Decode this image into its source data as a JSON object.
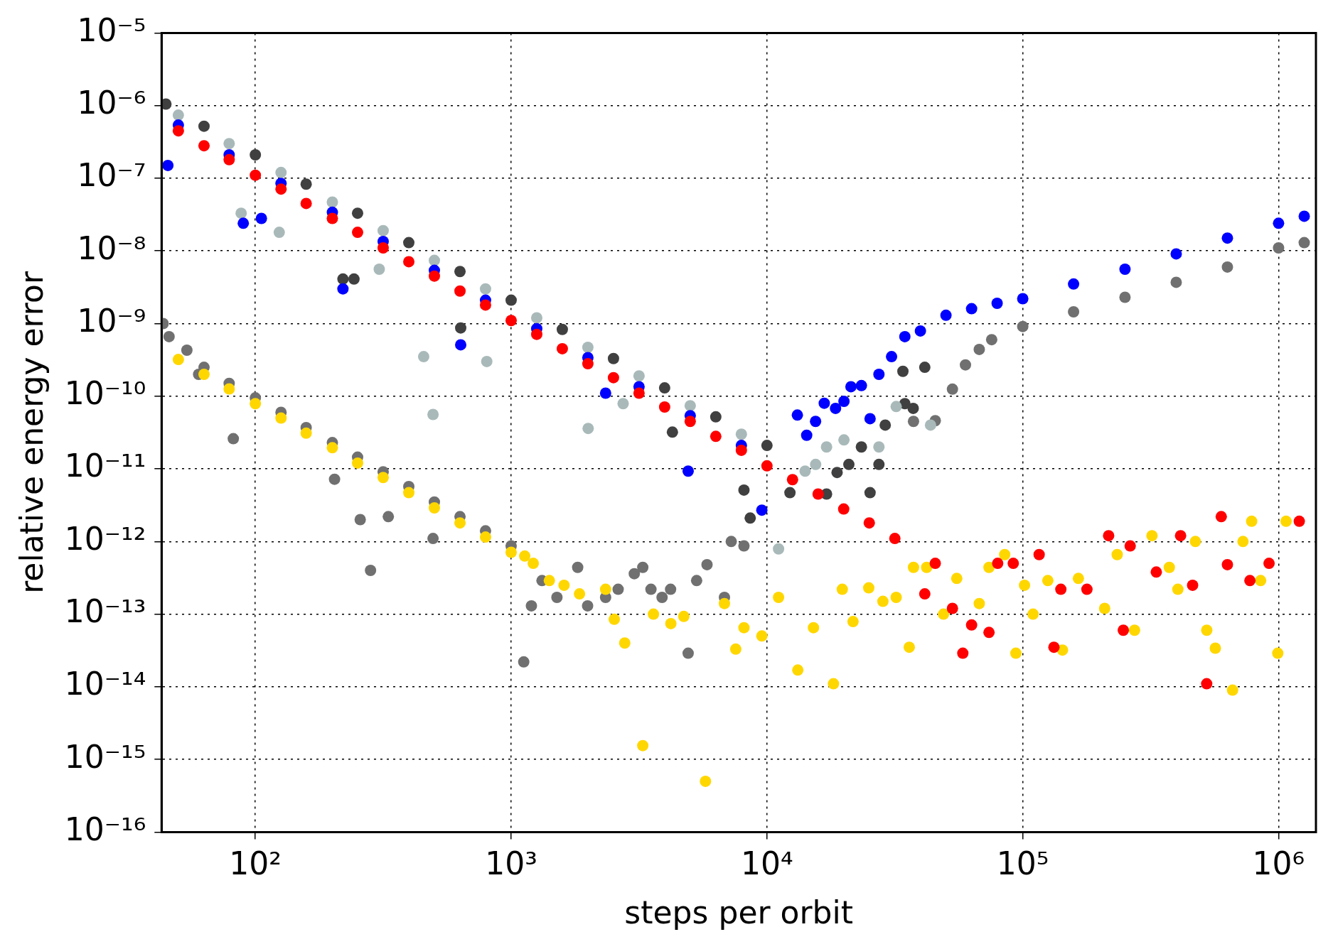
{
  "chart_data": {
    "type": "scatter",
    "xlabel": "steps per orbit",
    "ylabel": "relative energy error",
    "log": "xy",
    "grid": true,
    "legend": false,
    "marker": "circle",
    "xlim": [
      43,
      1400000
    ],
    "xticks": [
      {
        "value": 100,
        "label": "10²"
      },
      {
        "value": 1000,
        "label": "10³"
      },
      {
        "value": 10000,
        "label": "10⁴"
      },
      {
        "value": 100000,
        "label": "10⁵"
      },
      {
        "value": 1000000,
        "label": "10⁶"
      }
    ],
    "ylim": [
      1e-16,
      1e-05
    ],
    "yticks": [
      {
        "value": 1e-16,
        "label": "10⁻¹⁶"
      },
      {
        "value": 1e-15,
        "label": "10⁻¹⁵"
      },
      {
        "value": 1e-14,
        "label": "10⁻¹⁴"
      },
      {
        "value": 1e-13,
        "label": "10⁻¹³"
      },
      {
        "value": 1e-12,
        "label": "10⁻¹²"
      },
      {
        "value": 1e-11,
        "label": "10⁻¹¹"
      },
      {
        "value": 1e-10,
        "label": "10⁻¹⁰"
      },
      {
        "value": 1e-09,
        "label": "10⁻⁹"
      },
      {
        "value": 1e-08,
        "label": "10⁻⁸"
      },
      {
        "value": 1e-07,
        "label": "10⁻⁷"
      },
      {
        "value": 1e-06,
        "label": "10⁻⁶"
      },
      {
        "value": 1e-05,
        "label": "10⁻⁵"
      }
    ],
    "series": [
      {
        "color": "#707070",
        "x": [
          43.6,
          46,
          54,
          60,
          63,
          79,
          82,
          100,
          126,
          158,
          200,
          204,
          251,
          257,
          282,
          316,
          331,
          398,
          495,
          501,
          631,
          794,
          1000,
          1120,
          1200,
          1320,
          1510,
          1820,
          1990,
          2340,
          2620,
          3030,
          3270,
          3520,
          3890,
          4200,
          4920,
          5310,
          5830,
          6820,
          7250,
          8130,
          37400,
          45500,
          53100,
          59700,
          67600,
          75600,
          100000,
          158000,
          251000,
          398000,
          631000,
          1000000,
          1260000
        ],
        "values": [
          1e-09,
          6.6e-10,
          4.3e-10,
          2e-10,
          2.5e-10,
          1.5e-10,
          2.6e-11,
          9.5e-11,
          6e-11,
          3.7e-11,
          2.3e-11,
          7.2e-12,
          1.45e-11,
          2e-12,
          4e-13,
          9.1e-12,
          2.2e-12,
          5.7e-12,
          1.1e-12,
          3.5e-12,
          2.2e-12,
          1.4e-12,
          8.7e-13,
          2.2e-14,
          1.3e-13,
          2.9e-13,
          1.7e-13,
          4.4e-13,
          1.3e-13,
          1.7e-13,
          2.2e-13,
          3.6e-13,
          4.4e-13,
          2.2e-13,
          1.7e-13,
          2.2e-13,
          2.9e-14,
          2.9e-13,
          4.8e-13,
          1.7e-13,
          1e-12,
          8.7e-13,
          4.5e-11,
          4.6e-11,
          1.25e-10,
          2.7e-10,
          4.4e-10,
          6e-10,
          9.1e-10,
          1.45e-09,
          2.3e-09,
          3.7e-09,
          6e-09,
          1.1e-08,
          1.3e-08
        ]
      },
      {
        "color": "#404040",
        "x": [
          44.7,
          63,
          100,
          158,
          220,
          243,
          251,
          398,
          631,
          635,
          1000,
          1585,
          2512,
          3981,
          4270,
          6310,
          8130,
          8600,
          10000,
          12300,
          17100,
          18800,
          20900,
          23400,
          25300,
          27400,
          29000,
          34000,
          34600,
          37300,
          41400
        ],
        "values": [
          1.05e-06,
          5.2e-07,
          2.1e-07,
          8.3e-08,
          4.1e-09,
          4.1e-09,
          3.3e-08,
          1.3e-08,
          5.2e-09,
          8.7e-10,
          2.1e-09,
          8.3e-10,
          3.3e-10,
          1.3e-10,
          3.2e-11,
          5.2e-11,
          5.1e-12,
          2.1e-12,
          2.1e-11,
          4.7e-12,
          4.5e-12,
          8.9e-12,
          1.15e-11,
          2e-11,
          4.7e-12,
          1.15e-11,
          4e-11,
          2.2e-10,
          7.9e-11,
          6.8e-11,
          2.5e-10
        ]
      },
      {
        "color": "#a9b9b9",
        "x": [
          50,
          79,
          88,
          124,
          126,
          200,
          305,
          316,
          455,
          495,
          501,
          794,
          803,
          1259,
          1995,
          2000,
          2740,
          3162,
          5012,
          7943,
          11100,
          14100,
          15500,
          17100,
          20000,
          25000,
          27400,
          32000,
          43600
        ],
        "values": [
          7.4e-07,
          3e-07,
          3.3e-08,
          1.8e-08,
          1.2e-07,
          4.7e-08,
          5.6e-09,
          1.9e-08,
          3.5e-10,
          5.6e-11,
          7.4e-09,
          3e-09,
          3e-10,
          1.2e-09,
          4.7e-10,
          3.6e-11,
          7.9e-11,
          1.9e-10,
          7.4e-11,
          3e-11,
          7.9e-13,
          9.3e-12,
          1.15e-11,
          2e-11,
          2.5e-11,
          null,
          2e-11,
          7.2e-11,
          4e-11
        ]
      },
      {
        "color": "#0000ff",
        "x": [
          45.5,
          50,
          79,
          89.7,
          105.6,
          126,
          200,
          220,
          316,
          501,
          635,
          794,
          1259,
          1995,
          2340,
          3162,
          4920,
          5012,
          7943,
          9550,
          13150,
          14300,
          15490,
          16750,
          18540,
          20000,
          21300,
          23400,
          25300,
          27400,
          30700,
          34600,
          39800,
          50100,
          63100,
          79400,
          100000,
          158000,
          251000,
          398000,
          631000,
          1000000,
          1260000
        ],
        "values": [
          1.5e-07,
          5.4e-07,
          2.1e-07,
          2.4e-08,
          2.8e-08,
          8.5e-08,
          3.4e-08,
          3e-09,
          1.35e-08,
          5.4e-09,
          5.1e-10,
          2.1e-09,
          8.5e-10,
          3.4e-10,
          1.1e-10,
          1.35e-10,
          9.3e-12,
          5.4e-11,
          2.1e-11,
          2.7e-12,
          5.5e-11,
          2.9e-11,
          4.5e-11,
          8e-11,
          6.8e-11,
          8.5e-11,
          1.35e-10,
          1.4e-10,
          4.9e-11,
          2e-10,
          3.5e-10,
          6.6e-10,
          7.9e-10,
          1.3e-09,
          1.6e-09,
          1.9e-09,
          2.2e-09,
          3.5e-09,
          5.6e-09,
          9.1e-09,
          1.5e-08,
          2.4e-08,
          3e-08
        ]
      },
      {
        "color": "#ffd700",
        "x": [
          50,
          63,
          79,
          100,
          126,
          158,
          200,
          251,
          316,
          398,
          501,
          631,
          794,
          1000,
          1130,
          1220,
          1410,
          1610,
          1850,
          2340,
          2530,
          2780,
          3270,
          3600,
          4210,
          4730,
          5750,
          6820,
          7550,
          8130,
          9550,
          11100,
          13200,
          15200,
          18200,
          19700,
          21700,
          25000,
          28400,
          32000,
          36000,
          37400,
          42100,
          49000,
          55200,
          67600,
          73800,
          85000,
          94000,
          101600,
          109700,
          125300,
          143000,
          165000,
          209000,
          234000,
          273600,
          320000,
          374000,
          404000,
          473000,
          524000,
          566000,
          661000,
          726000,
          785000,
          851000,
          993000,
          1070000
        ],
        "values": [
          3.2e-10,
          2e-10,
          1.26e-10,
          7.9e-11,
          5e-11,
          3.1e-11,
          1.95e-11,
          1.2e-11,
          7.6e-12,
          4.7e-12,
          2.9e-12,
          1.8e-12,
          1.15e-12,
          7.1e-13,
          6.3e-13,
          5e-13,
          2.9e-13,
          2.5e-13,
          1.9e-13,
          2.2e-13,
          8.5e-14,
          4e-14,
          1.55e-15,
          1e-13,
          7.4e-14,
          9.3e-14,
          5e-16,
          1.4e-13,
          3.3e-14,
          6.5e-14,
          5e-14,
          1.7e-13,
          1.7e-14,
          6.5e-14,
          1.1e-14,
          2.2e-13,
          7.9e-14,
          2.3e-13,
          1.5e-13,
          1.7e-13,
          3.5e-14,
          4.4e-13,
          4.4e-13,
          1e-13,
          3.1e-13,
          1.4e-13,
          4.4e-13,
          6.6e-13,
          2.9e-14,
          2.5e-13,
          1e-13,
          2.9e-13,
          3.2e-14,
          3.1e-13,
          1.2e-13,
          6.6e-13,
          6e-14,
          1.2e-12,
          4.4e-13,
          2.2e-13,
          1e-12,
          6e-14,
          3.4e-14,
          9e-15,
          1e-12,
          1.9e-12,
          2.9e-13,
          2.9e-14,
          1.9e-12
        ]
      },
      {
        "color": "#ff0000",
        "x": [
          50,
          63,
          79,
          100,
          126,
          158,
          200,
          251,
          316,
          398,
          501,
          631,
          794,
          1000,
          1259,
          1585,
          1995,
          2512,
          3162,
          3981,
          5012,
          6310,
          7943,
          10000,
          12589,
          15849,
          19953,
          25119,
          31623,
          41400,
          45500,
          53100,
          58300,
          63100,
          73800,
          79800,
          91800,
          115900,
          132400,
          140900,
          178200,
          216600,
          247200,
          263000,
          332700,
          414000,
          461300,
          523600,
          597000,
          631000,
          772700,
          918000,
          1205000
        ],
        "values": [
          4.5e-07,
          2.8e-07,
          1.8e-07,
          1.1e-07,
          7.1e-08,
          4.5e-08,
          2.8e-08,
          1.8e-08,
          1.1e-08,
          7.1e-09,
          4.5e-09,
          2.8e-09,
          1.8e-09,
          1.1e-09,
          7.1e-10,
          4.5e-10,
          2.8e-10,
          1.8e-10,
          1.1e-10,
          7.1e-11,
          4.5e-11,
          2.8e-11,
          1.8e-11,
          1.1e-11,
          7.1e-12,
          4.5e-12,
          2.8e-12,
          1.8e-12,
          1.1e-12,
          1.9e-13,
          5e-13,
          1.2e-13,
          2.9e-14,
          7.1e-14,
          5.6e-14,
          5e-13,
          5e-13,
          6.6e-13,
          3.5e-14,
          2.2e-13,
          2.2e-13,
          1.2e-12,
          6e-14,
          8.7e-13,
          3.8e-13,
          1.2e-12,
          2.5e-13,
          1.1e-14,
          2.2e-12,
          4.8e-13,
          2.9e-13,
          5e-13,
          1.9e-12
        ]
      }
    ]
  }
}
